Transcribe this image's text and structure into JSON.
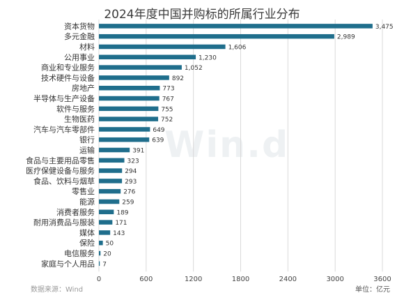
{
  "chart_data": {
    "type": "bar",
    "orientation": "horizontal",
    "title": "2024年度中国并购标的所属行业分布",
    "categories": [
      "资本货物",
      "多元金融",
      "材料",
      "公用事业",
      "商业和专业服务",
      "技术硬件与设备",
      "房地产",
      "半导体与生产设备",
      "软件与服务",
      "生物医药",
      "汽车与汽车零部件",
      "银行",
      "运输",
      "食品与主要用品零售",
      "医疗保健设备与服务",
      "食品、饮料与烟草",
      "零售业",
      "能源",
      "消费者服务",
      "耐用消费品与服装",
      "媒体",
      "保险",
      "电信服务",
      "家庭与个人用品"
    ],
    "values": [
      3475,
      2989,
      1606,
      1230,
      1052,
      892,
      773,
      767,
      755,
      752,
      649,
      639,
      391,
      323,
      294,
      293,
      276,
      259,
      189,
      171,
      143,
      50,
      20,
      7
    ],
    "value_labels": [
      "3,475",
      "2,989",
      "1,606",
      "1,230",
      "1,052",
      "892",
      "773",
      "767",
      "755",
      "752",
      "649",
      "639",
      "391",
      "323",
      "294",
      "293",
      "276",
      "259",
      "189",
      "171",
      "143",
      "50",
      "20",
      "7"
    ],
    "xlim": [
      0,
      3600
    ],
    "xticks": [
      "0",
      "600",
      "1200",
      "1800",
      "2400",
      "3000",
      "3600"
    ],
    "grid": "vertical",
    "bar_color": "#1f6e8c",
    "grid_color": "#d9d9d9",
    "watermark": "Win.d"
  },
  "footer": {
    "source": "数据来源：Wind",
    "unit": "单位：亿元"
  }
}
